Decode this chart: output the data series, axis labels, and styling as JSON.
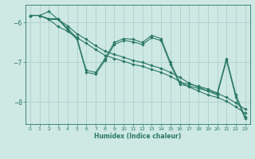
{
  "xlabel": "Humidex (Indice chaleur)",
  "background_color": "#cee8e4",
  "grid_color": "#aed0cc",
  "line_color": "#2a7868",
  "xlim": [
    -0.5,
    23.5
  ],
  "ylim": [
    -8.55,
    -5.55
  ],
  "yticks": [
    -8,
    -7,
    -6
  ],
  "xticks": [
    0,
    1,
    2,
    3,
    4,
    5,
    6,
    7,
    8,
    9,
    10,
    11,
    12,
    13,
    14,
    15,
    16,
    17,
    18,
    19,
    20,
    21,
    22,
    23
  ],
  "series": [
    {
      "x": [
        0,
        1,
        2,
        3,
        4,
        5,
        6,
        7,
        8,
        9,
        10,
        11,
        12,
        13,
        14,
        15,
        16,
        17,
        18,
        19,
        20,
        21,
        22,
        23
      ],
      "y": [
        -5.82,
        -5.82,
        -5.92,
        -6.1,
        -6.22,
        -6.38,
        -6.52,
        -6.68,
        -6.82,
        -6.9,
        -6.97,
        -7.05,
        -7.1,
        -7.18,
        -7.25,
        -7.35,
        -7.48,
        -7.62,
        -7.72,
        -7.82,
        -7.88,
        -7.98,
        -8.12,
        -8.28
      ]
    },
    {
      "x": [
        0,
        1,
        2,
        3,
        4,
        5,
        6,
        7,
        8,
        9,
        10,
        11,
        12,
        13,
        14,
        15,
        16,
        17,
        18,
        19,
        20,
        21,
        22,
        23
      ],
      "y": [
        -5.82,
        -5.82,
        -5.92,
        -5.92,
        -6.18,
        -6.42,
        -7.25,
        -7.3,
        -6.95,
        -6.55,
        -6.45,
        -6.48,
        -6.55,
        -6.38,
        -6.45,
        -7.05,
        -7.55,
        -7.6,
        -7.65,
        -7.72,
        -7.82,
        -6.95,
        -7.88,
        -8.42
      ]
    },
    {
      "x": [
        0,
        1,
        2,
        3,
        4,
        5,
        6,
        7,
        8,
        9,
        10,
        11,
        12,
        13,
        14,
        15,
        16,
        17,
        18,
        19,
        20,
        21,
        22,
        23
      ],
      "y": [
        -5.82,
        -5.82,
        -5.9,
        -5.9,
        -6.15,
        -6.38,
        -7.2,
        -7.25,
        -6.9,
        -6.5,
        -6.4,
        -6.42,
        -6.5,
        -6.32,
        -6.4,
        -7.0,
        -7.5,
        -7.55,
        -7.6,
        -7.67,
        -7.77,
        -6.9,
        -7.82,
        -8.37
      ]
    },
    {
      "x": [
        0,
        1,
        2,
        3,
        4,
        5,
        6,
        7,
        8,
        9,
        10,
        11,
        12,
        13,
        14,
        15,
        16,
        17,
        18,
        19,
        20,
        21,
        22,
        23
      ],
      "y": [
        -5.82,
        -5.82,
        -5.72,
        -5.92,
        -6.08,
        -6.28,
        -6.42,
        -6.58,
        -6.72,
        -6.8,
        -6.87,
        -6.95,
        -7.0,
        -7.08,
        -7.15,
        -7.25,
        -7.38,
        -7.52,
        -7.62,
        -7.72,
        -7.78,
        -7.88,
        -8.02,
        -8.18
      ]
    }
  ]
}
